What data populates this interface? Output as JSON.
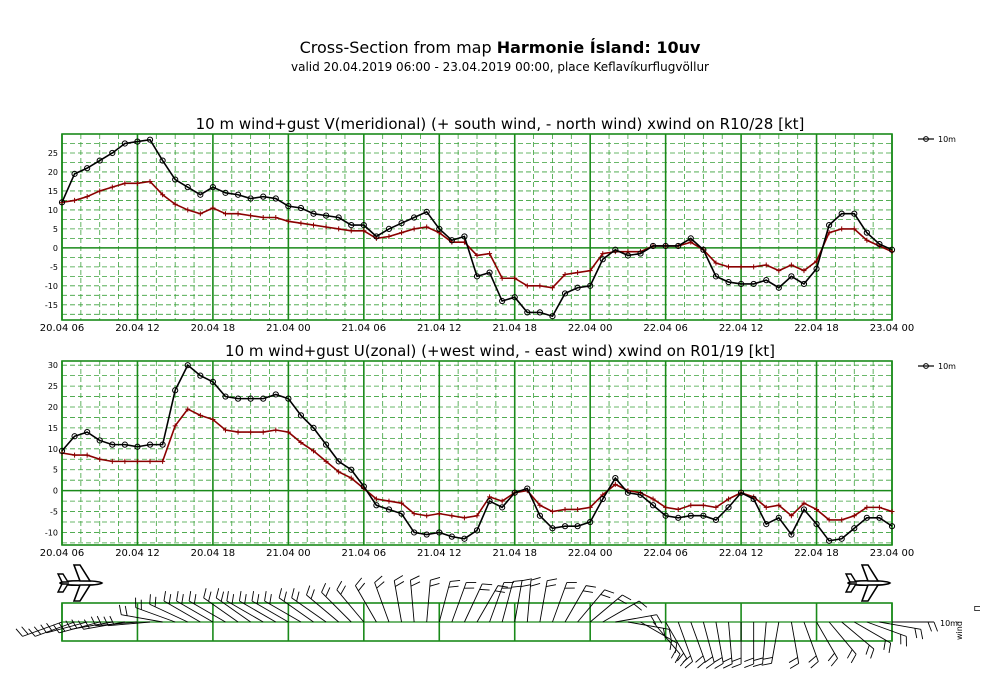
{
  "header": {
    "title_prefix": "Cross-Section from map ",
    "title_bold": "Harmonie Ísland: 10uv",
    "subtitle": "valid 20.04.2019 06:00 - 23.04.2019 00:00, place Keflavíkurflugvöllur"
  },
  "colors": {
    "grid": "#1a8a1a",
    "grid_dash": "#3aa03a",
    "background": "#ffffff",
    "series_10m": "#000000",
    "series_gust": "#8b0000"
  },
  "chart_data": [
    {
      "type": "line",
      "title": "10 m wind+gust V(meridional) (+ south wind, - north wind) xwind on R10/28 [kt]",
      "x_tick_labels": [
        "20.04 06",
        "20.04 12",
        "20.04 18",
        "21.04 00",
        "21.04 06",
        "21.04 12",
        "21.04 18",
        "22.04 00",
        "22.04 06",
        "22.04 12",
        "22.04 18",
        "23.04 00"
      ],
      "x_range_hours": [
        0,
        66
      ],
      "ylim": [
        -19,
        30
      ],
      "y_ticks": [
        -15,
        -10,
        -5,
        0,
        5,
        10,
        15,
        20,
        25
      ],
      "legend": "10m",
      "legend_position": "top-right",
      "grid": true,
      "series": [
        {
          "name": "10m",
          "color": "#000000",
          "marker": "circle",
          "x": [
            0,
            1,
            2,
            3,
            4,
            5,
            6,
            7,
            8,
            9,
            10,
            11,
            12,
            13,
            14,
            15,
            16,
            17,
            18,
            19,
            20,
            21,
            22,
            23,
            24,
            25,
            26,
            27,
            28,
            29,
            30,
            31,
            32,
            33,
            34,
            35,
            36,
            37,
            38,
            39,
            40,
            41,
            42,
            43,
            44,
            45,
            46,
            47,
            48,
            49,
            50,
            51,
            52,
            53,
            54,
            55,
            56,
            57,
            58,
            59,
            60,
            61,
            62,
            63,
            64,
            65,
            66
          ],
          "values": [
            12,
            19.5,
            21,
            23,
            25,
            27.5,
            28,
            28.5,
            23,
            18,
            16,
            14,
            16,
            14.5,
            14,
            13,
            13.5,
            13,
            11,
            10.5,
            9,
            8.5,
            8,
            6,
            6,
            3,
            5,
            6.5,
            8,
            9.5,
            5,
            2,
            3,
            -7.5,
            -6.5,
            -14,
            -13,
            -17,
            -17,
            -18,
            -12,
            -10.5,
            -10,
            -3,
            -0.5,
            -2,
            -1.5,
            0.5,
            0.5,
            0.5,
            2.5,
            -0.5,
            -7.5,
            -9,
            -9.5,
            -9.5,
            -8.5,
            -10.5,
            -7.5,
            -9.5,
            -5.5,
            6,
            9,
            9,
            4,
            1,
            -0.5
          ]
        },
        {
          "name": "",
          "color": "#8b0000",
          "marker": "plus",
          "x": [
            0,
            1,
            2,
            3,
            4,
            5,
            6,
            7,
            8,
            9,
            10,
            11,
            12,
            13,
            14,
            15,
            16,
            17,
            18,
            19,
            20,
            21,
            22,
            23,
            24,
            25,
            26,
            27,
            28,
            29,
            30,
            31,
            32,
            33,
            34,
            35,
            36,
            37,
            38,
            39,
            40,
            41,
            42,
            43,
            44,
            45,
            46,
            47,
            48,
            49,
            50,
            51,
            52,
            53,
            54,
            55,
            56,
            57,
            58,
            59,
            60,
            61,
            62,
            63,
            64,
            65,
            66
          ],
          "values": [
            12,
            12.5,
            13.5,
            15,
            16,
            17,
            17,
            17.5,
            14,
            11.5,
            10,
            9,
            10.5,
            9,
            9,
            8.5,
            8,
            8,
            7,
            6.5,
            6,
            5.5,
            5,
            4.5,
            4.5,
            2.5,
            3,
            4,
            5,
            5.5,
            4,
            1.5,
            1.5,
            -2,
            -1.5,
            -8,
            -8,
            -10,
            -10,
            -10.5,
            -7,
            -6.5,
            -6,
            -1.5,
            -1,
            -1,
            -1,
            0.5,
            0.5,
            0.5,
            1.5,
            -0.5,
            -4,
            -5,
            -5,
            -5,
            -4.5,
            -6,
            -4.5,
            -6,
            -3.5,
            4,
            5,
            5,
            2,
            0.5,
            -1
          ]
        }
      ]
    },
    {
      "type": "line",
      "title": "10 m wind+gust U(zonal) (+west wind, - east wind) xwind on R01/19 [kt]",
      "x_tick_labels": [
        "20.04 06",
        "20.04 12",
        "20.04 18",
        "21.04 00",
        "21.04 06",
        "21.04 12",
        "21.04 18",
        "22.04 00",
        "22.04 06",
        "22.04 12",
        "22.04 18",
        "23.04 00"
      ],
      "x_range_hours": [
        0,
        66
      ],
      "ylim": [
        -13,
        31
      ],
      "y_ticks": [
        -10,
        -5,
        0,
        5,
        10,
        15,
        20,
        25,
        30
      ],
      "legend": "10m",
      "legend_position": "top-right",
      "grid": true,
      "series": [
        {
          "name": "10m",
          "color": "#000000",
          "marker": "circle",
          "x": [
            0,
            1,
            2,
            3,
            4,
            5,
            6,
            7,
            8,
            9,
            10,
            11,
            12,
            13,
            14,
            15,
            16,
            17,
            18,
            19,
            20,
            21,
            22,
            23,
            24,
            25,
            26,
            27,
            28,
            29,
            30,
            31,
            32,
            33,
            34,
            35,
            36,
            37,
            38,
            39,
            40,
            41,
            42,
            43,
            44,
            45,
            46,
            47,
            48,
            49,
            50,
            51,
            52,
            53,
            54,
            55,
            56,
            57,
            58,
            59,
            60,
            61,
            62,
            63,
            64,
            65,
            66
          ],
          "values": [
            9.5,
            13,
            14,
            12,
            11,
            11,
            10.5,
            11,
            11,
            24,
            30,
            27.5,
            26,
            22.5,
            22,
            22,
            22,
            23,
            22,
            18,
            15,
            11,
            7,
            5,
            1,
            -3.5,
            -4.5,
            -5.5,
            -10,
            -10.5,
            -10,
            -11,
            -11.5,
            -9.5,
            -2.5,
            -4,
            -0.5,
            0.5,
            -6,
            -9,
            -8.5,
            -8.5,
            -7.5,
            -2,
            3,
            -0.5,
            -1,
            -3.5,
            -6,
            -6.5,
            -6,
            -6,
            -7,
            -4,
            -0.5,
            -2,
            -8,
            -6.5,
            -10.5,
            -4.5,
            -8,
            -12,
            -11.5,
            -9,
            -6.5,
            -6.5,
            -8.5
          ]
        },
        {
          "name": "",
          "color": "#8b0000",
          "marker": "plus",
          "x": [
            0,
            1,
            2,
            3,
            4,
            5,
            6,
            7,
            8,
            9,
            10,
            11,
            12,
            13,
            14,
            15,
            16,
            17,
            18,
            19,
            20,
            21,
            22,
            23,
            24,
            25,
            26,
            27,
            28,
            29,
            30,
            31,
            32,
            33,
            34,
            35,
            36,
            37,
            38,
            39,
            40,
            41,
            42,
            43,
            44,
            45,
            46,
            47,
            48,
            49,
            50,
            51,
            52,
            53,
            54,
            55,
            56,
            57,
            58,
            59,
            60,
            61,
            62,
            63,
            64,
            65,
            66
          ],
          "values": [
            9,
            8.5,
            8.5,
            7.5,
            7,
            7,
            7,
            7,
            7,
            15.5,
            19.5,
            18,
            17,
            14.5,
            14,
            14,
            14,
            14.5,
            14,
            11.5,
            9.5,
            7,
            4.5,
            3,
            0.5,
            -2,
            -2.5,
            -3,
            -5.5,
            -6,
            -5.5,
            -6,
            -6.5,
            -6,
            -1.5,
            -2.5,
            -0.5,
            0,
            -3.5,
            -5,
            -4.5,
            -4.5,
            -4,
            -1,
            1.5,
            0,
            -0.5,
            -2,
            -4,
            -4.5,
            -3.5,
            -3.5,
            -4,
            -2,
            -0.5,
            -1.5,
            -4,
            -3.5,
            -6,
            -3,
            -4.5,
            -7,
            -7,
            -6,
            -4,
            -4,
            -5
          ]
        }
      ]
    }
  ],
  "wind_panel": {
    "side_label_level": "10m",
    "side_label_param": "wind",
    "side_label_extra": "⊓",
    "left_icon": "airplane-icon",
    "right_icon": "airplane-icon",
    "barb_directions_deg": [
      250,
      250,
      255,
      255,
      260,
      260,
      265,
      265,
      280,
      290,
      295,
      300,
      300,
      300,
      305,
      305,
      300,
      300,
      300,
      300,
      305,
      305,
      310,
      315,
      320,
      330,
      340,
      350,
      355,
      5,
      15,
      20,
      25,
      30,
      20,
      15,
      10,
      5,
      10,
      20,
      30,
      40,
      50,
      60,
      80,
      100,
      120,
      140,
      150,
      160,
      160,
      165,
      170,
      175,
      180,
      180,
      185,
      190,
      170,
      160,
      150,
      140,
      130,
      120,
      110,
      100,
      90
    ]
  }
}
